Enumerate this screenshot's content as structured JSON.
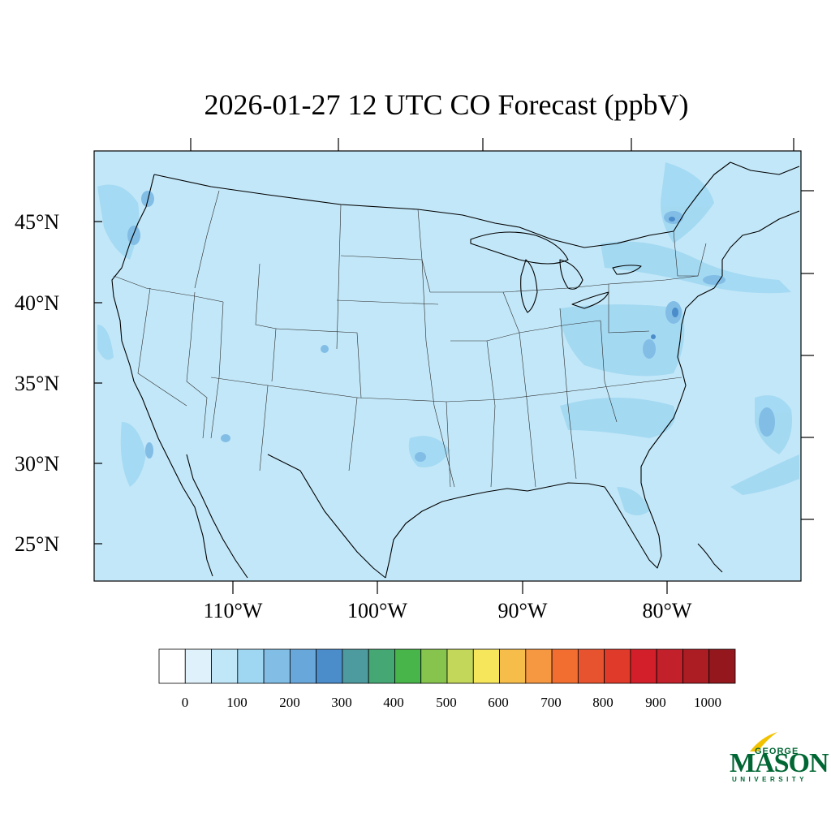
{
  "title": "2026-01-27 12 UTC CO Forecast (ppbV)",
  "lat_labels": [
    "45°N",
    "40°N",
    "35°N",
    "30°N",
    "25°N"
  ],
  "lon_labels": [
    "110°W",
    "100°W",
    "90°W",
    "80°W"
  ],
  "colorbar": {
    "colors": [
      "#ffffff",
      "#dff2fb",
      "#bfe7f8",
      "#9fd7f2",
      "#82bde6",
      "#68a7da",
      "#4b8cca",
      "#4e9b9f",
      "#45a874",
      "#47b54a",
      "#86c44d",
      "#c3d75a",
      "#f5e65c",
      "#f6bd4a",
      "#f59841",
      "#f16e30",
      "#e8532f",
      "#e03a2a",
      "#d21f2a",
      "#c2202a",
      "#ac1c23",
      "#93171d"
    ],
    "tick_labels": [
      "0",
      "100",
      "200",
      "300",
      "400",
      "500",
      "600",
      "700",
      "800",
      "900",
      "1000"
    ]
  },
  "map": {
    "background_color": "#c2e7f8",
    "enhanced_color": "#9fd7f2",
    "higher_color": "#82bde6",
    "peak_color": "#4b8cca"
  },
  "logo": {
    "line1": "GEORGE",
    "line2": "MASON",
    "line3": "UNIVERSITY"
  }
}
